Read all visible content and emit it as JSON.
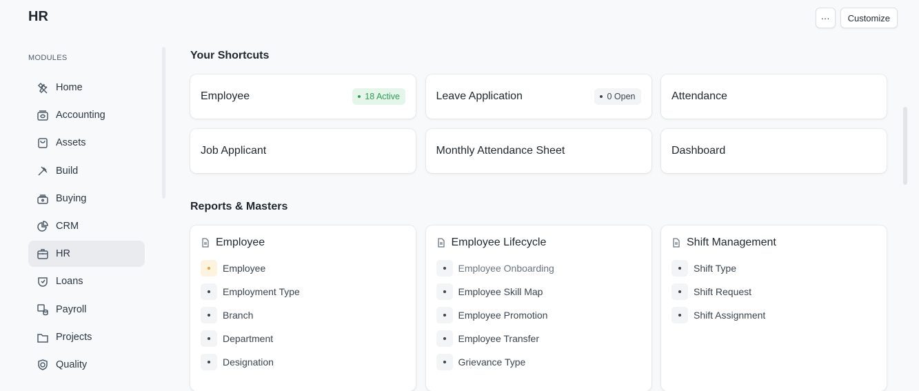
{
  "header": {
    "title": "HR",
    "more_label": "···",
    "customize_label": "Customize"
  },
  "sidebar": {
    "section_label": "MODULES",
    "items": [
      {
        "label": "Home",
        "icon": "tools-icon"
      },
      {
        "label": "Accounting",
        "icon": "money-icon"
      },
      {
        "label": "Assets",
        "icon": "bag-icon"
      },
      {
        "label": "Build",
        "icon": "hammer-icon"
      },
      {
        "label": "Buying",
        "icon": "register-icon"
      },
      {
        "label": "CRM",
        "icon": "pie-chart-icon"
      },
      {
        "label": "HR",
        "icon": "briefcase-icon",
        "active": true
      },
      {
        "label": "Loans",
        "icon": "loan-icon"
      },
      {
        "label": "Payroll",
        "icon": "payroll-icon"
      },
      {
        "label": "Projects",
        "icon": "folder-icon"
      },
      {
        "label": "Quality",
        "icon": "shield-check-icon"
      }
    ]
  },
  "shortcuts": {
    "title": "Your Shortcuts",
    "items": [
      {
        "label": "Employee",
        "badge": "18 Active",
        "badge_color": "#2f9d58",
        "badge_bg": "#e4f5e9"
      },
      {
        "label": "Leave Application",
        "badge": "0 Open",
        "badge_color": "#3a444e",
        "badge_bg": "#f3f4f6"
      },
      {
        "label": "Attendance"
      },
      {
        "label": "Job Applicant"
      },
      {
        "label": "Monthly Attendance Sheet"
      },
      {
        "label": "Dashboard"
      }
    ]
  },
  "reports": {
    "title": "Reports & Masters",
    "cards": [
      {
        "title": "Employee",
        "links": [
          "Employee",
          "Employment Type",
          "Branch",
          "Department",
          "Designation"
        ]
      },
      {
        "title": "Employee Lifecycle",
        "links": [
          "Employee Onboarding",
          "Employee Skill Map",
          "Employee Promotion",
          "Employee Transfer",
          "Grievance Type"
        ]
      },
      {
        "title": "Shift Management",
        "links": [
          "Shift Type",
          "Shift Request",
          "Shift Assignment"
        ]
      }
    ]
  }
}
